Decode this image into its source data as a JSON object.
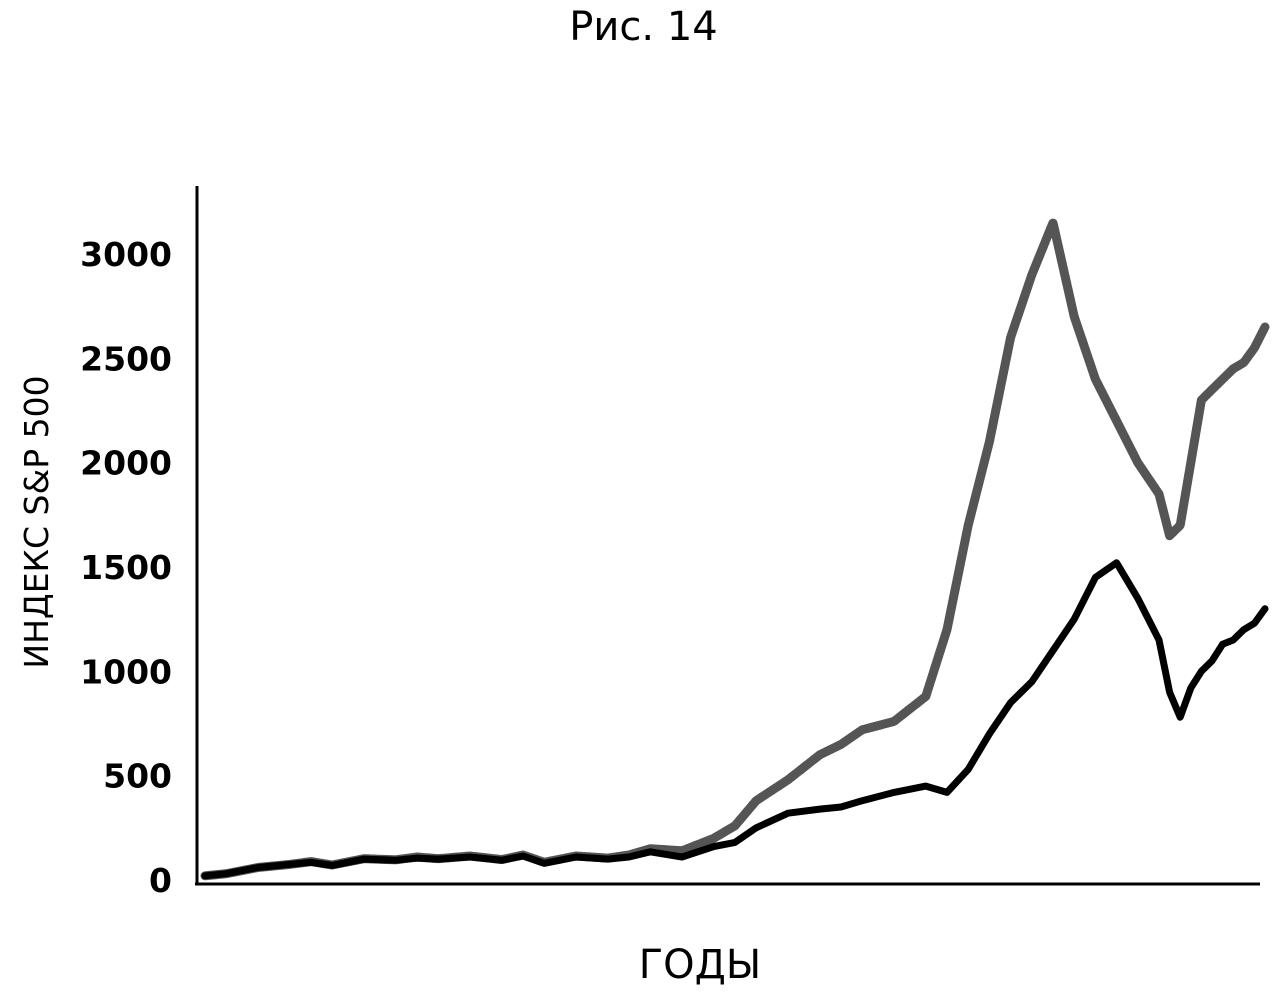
{
  "figure_title": "Рис. 14",
  "chart_data": {
    "type": "line",
    "title": "",
    "xlabel": "ГОДЫ",
    "ylabel": "ИНДЕКС S&P 500",
    "ylim": [
      0,
      3300
    ],
    "yticks": [
      0,
      500,
      1000,
      1500,
      2000,
      2500,
      3000
    ],
    "grid": false,
    "legend": "none",
    "x": [
      0,
      2,
      5,
      8,
      10,
      12,
      15,
      18,
      20,
      22,
      25,
      28,
      30,
      32,
      35,
      38,
      40,
      42,
      45,
      48,
      50,
      52,
      55,
      58,
      60,
      62,
      65,
      68,
      70,
      72,
      74,
      76,
      78,
      80,
      82,
      84,
      86,
      88,
      90,
      91,
      92,
      93,
      94,
      95,
      96,
      97,
      98,
      99,
      100
    ],
    "series": [
      {
        "style": "thick-black",
        "color": "#000000",
        "values": [
          20,
          30,
          60,
          75,
          85,
          70,
          100,
          95,
          105,
          100,
          110,
          95,
          115,
          80,
          110,
          100,
          110,
          135,
          110,
          160,
          180,
          250,
          320,
          340,
          350,
          380,
          420,
          450,
          420,
          530,
          700,
          850,
          950,
          1100,
          1250,
          1450,
          1520,
          1350,
          1150,
          900,
          780,
          920,
          1000,
          1050,
          1130,
          1150,
          1200,
          1230,
          1300
        ]
      },
      {
        "style": "thick-gray-hatched",
        "color": "#555555",
        "values": [
          20,
          30,
          60,
          75,
          88,
          72,
          102,
          97,
          110,
          102,
          115,
          98,
          120,
          85,
          115,
          105,
          120,
          150,
          140,
          200,
          260,
          380,
          480,
          600,
          650,
          720,
          760,
          880,
          1200,
          1700,
          2100,
          2600,
          2900,
          3150,
          2700,
          2400,
          2200,
          2000,
          1850,
          1650,
          1700,
          2000,
          2300,
          2350,
          2400,
          2450,
          2480,
          2550,
          2650
        ]
      }
    ]
  }
}
